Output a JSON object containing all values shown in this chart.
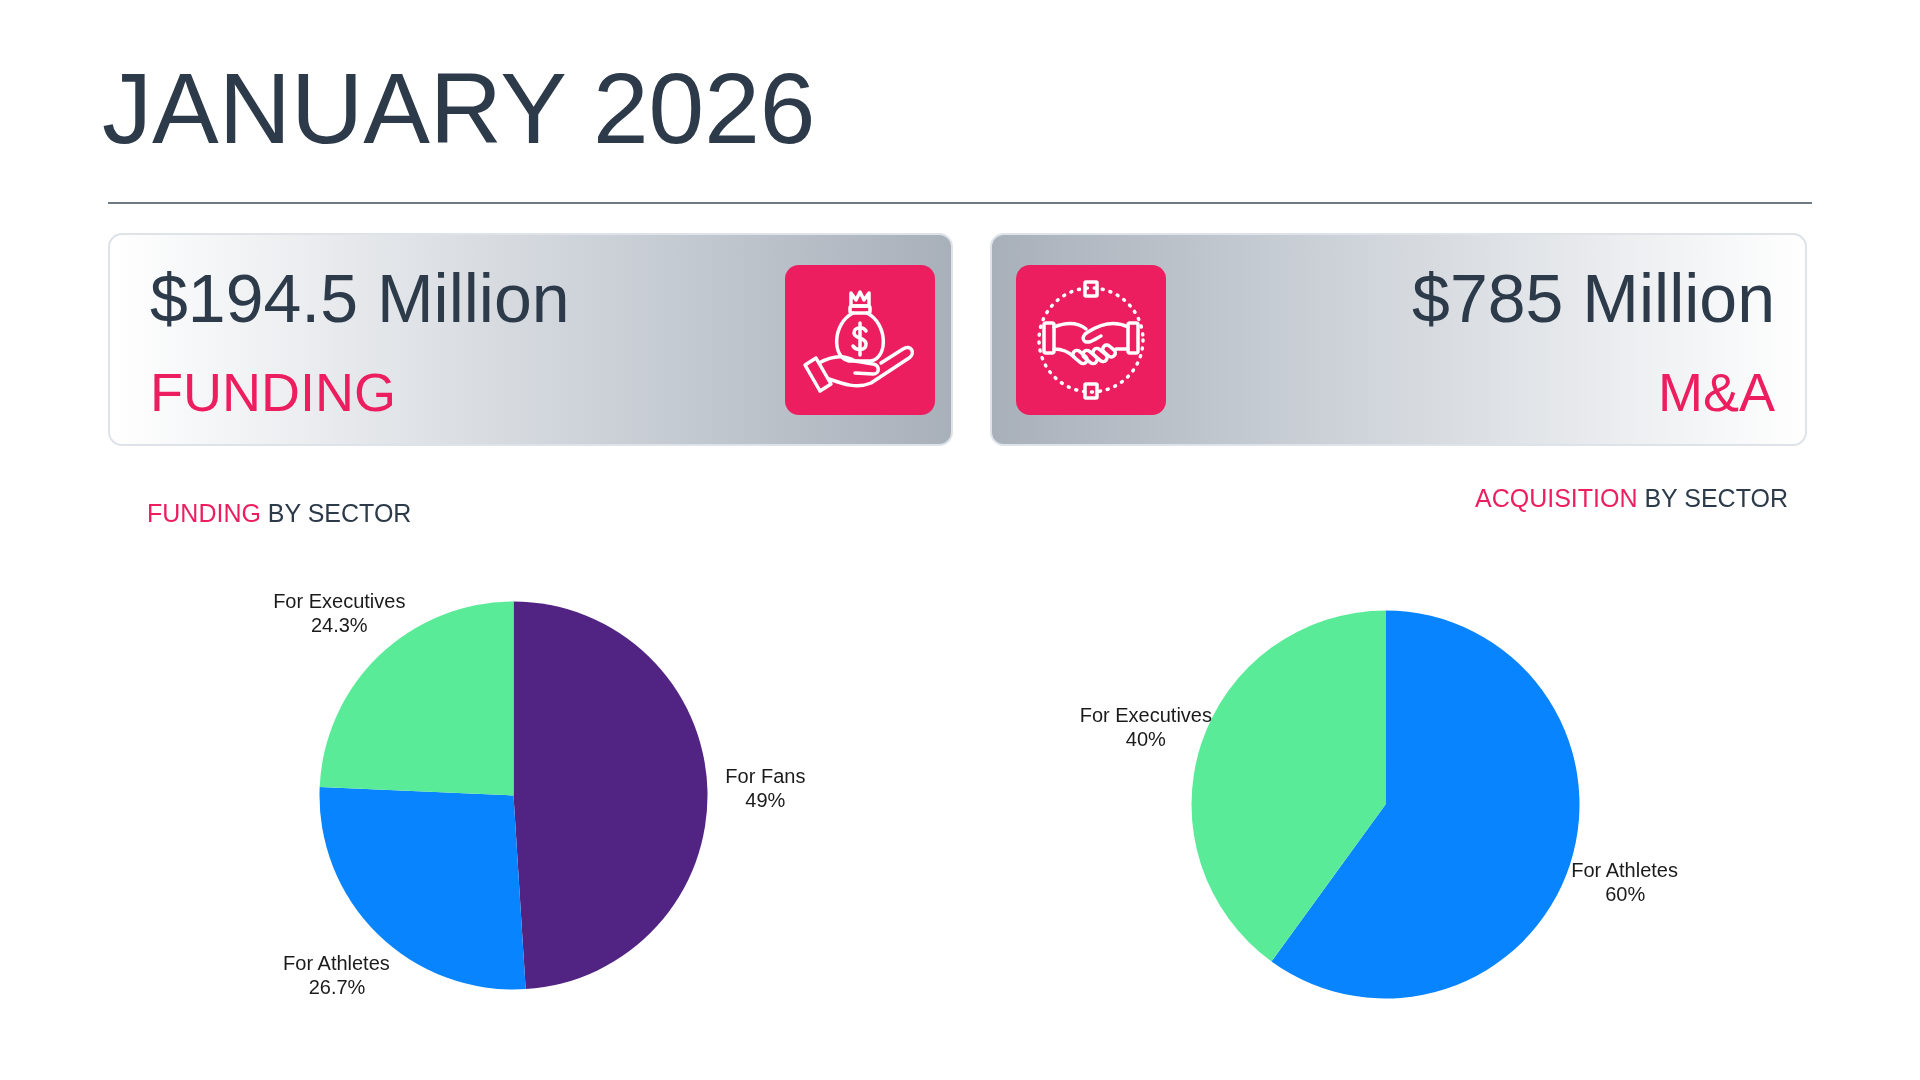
{
  "chart_data": [
    {
      "type": "other",
      "title": "JANUARY 2026"
    },
    {
      "type": "other",
      "title": "$194.5 Million",
      "subtitle": "FUNDING"
    },
    {
      "type": "other",
      "title": "$785 Million",
      "subtitle": "M&A"
    },
    {
      "type": "pie",
      "title": "FUNDING BY SECTOR",
      "categories": [
        "For Fans",
        "For Athletes",
        "For Executives"
      ],
      "values": [
        49,
        26.7,
        24.3
      ],
      "colors": [
        "#512483",
        "#0784fe",
        "#5aeb99"
      ],
      "value_labels": [
        "49%",
        "26.7%",
        "24.3%"
      ]
    },
    {
      "type": "pie",
      "title": "ACQUISITION BY SECTOR",
      "categories": [
        "For Athletes",
        "For Executives"
      ],
      "values": [
        60,
        40
      ],
      "colors": [
        "#0784fe",
        "#5aeb99"
      ],
      "value_labels": [
        "60%",
        "40%"
      ]
    }
  ]
}
